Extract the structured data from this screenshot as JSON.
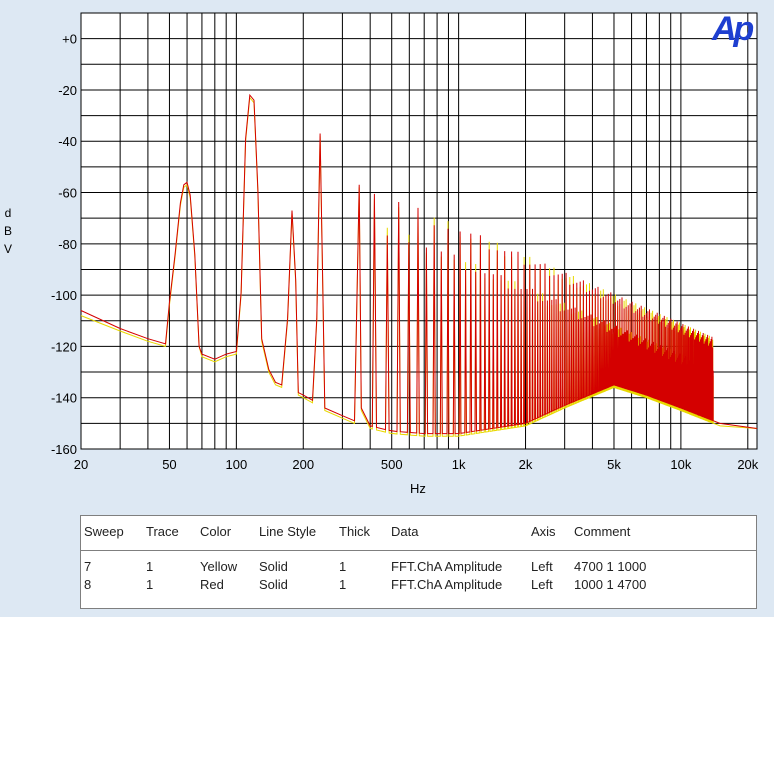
{
  "chart_data": {
    "type": "line",
    "title": "",
    "xlabel": "Hz",
    "ylabel": "dBV",
    "x_scale": "log",
    "xlim": [
      20,
      22000
    ],
    "ylim": [
      -160,
      10
    ],
    "grid": true,
    "xticks": [
      {
        "v": 20,
        "t": "20"
      },
      {
        "v": 50,
        "t": "50"
      },
      {
        "v": 100,
        "t": "100"
      },
      {
        "v": 200,
        "t": "200"
      },
      {
        "v": 500,
        "t": "500"
      },
      {
        "v": 1000,
        "t": "1k"
      },
      {
        "v": 2000,
        "t": "2k"
      },
      {
        "v": 5000,
        "t": "5k"
      },
      {
        "v": 10000,
        "t": "10k"
      },
      {
        "v": 20000,
        "t": "20k"
      }
    ],
    "yticks": [
      {
        "v": 0,
        "t": "+0"
      },
      {
        "v": -20,
        "t": "-20"
      },
      {
        "v": -40,
        "t": "-40"
      },
      {
        "v": -60,
        "t": "-60"
      },
      {
        "v": -80,
        "t": "-80"
      },
      {
        "v": -100,
        "t": "-100"
      },
      {
        "v": -120,
        "t": "-120"
      },
      {
        "v": -140,
        "t": "-140"
      },
      {
        "v": -160,
        "t": "-160"
      }
    ],
    "series": [
      {
        "name": "Yellow",
        "color": "#e8d800",
        "points": [
          [
            20,
            -108
          ],
          [
            30,
            -114
          ],
          [
            40,
            -118
          ],
          [
            48,
            -120
          ],
          [
            50,
            -104
          ],
          [
            53,
            -85
          ],
          [
            56,
            -65
          ],
          [
            58,
            -58
          ],
          [
            60,
            -57
          ],
          [
            62,
            -62
          ],
          [
            65,
            -85
          ],
          [
            68,
            -120
          ],
          [
            70,
            -124
          ],
          [
            80,
            -126
          ],
          [
            90,
            -124
          ],
          [
            100,
            -123
          ],
          [
            105,
            -100
          ],
          [
            110,
            -40
          ],
          [
            115,
            -23
          ],
          [
            120,
            -25
          ],
          [
            125,
            -60
          ],
          [
            130,
            -118
          ],
          [
            140,
            -130
          ],
          [
            150,
            -135
          ],
          [
            160,
            -136
          ],
          [
            170,
            -110
          ],
          [
            178,
            -68
          ],
          [
            185,
            -95
          ],
          [
            190,
            -139
          ],
          [
            200,
            -140
          ],
          [
            220,
            -142
          ],
          [
            230,
            -110
          ],
          [
            238,
            -38
          ],
          [
            245,
            -100
          ],
          [
            250,
            -145
          ],
          [
            300,
            -148
          ],
          [
            340,
            -150
          ],
          [
            357,
            -58
          ],
          [
            365,
            -145
          ],
          [
            400,
            -152
          ],
          [
            500,
            -154
          ],
          [
            700,
            -155
          ],
          [
            1000,
            -155
          ],
          [
            2000,
            -151
          ],
          [
            3000,
            -144
          ],
          [
            5000,
            -136
          ],
          [
            7000,
            -140
          ],
          [
            10000,
            -145
          ],
          [
            15000,
            -151
          ],
          [
            22000,
            -152
          ]
        ]
      },
      {
        "name": "Red",
        "color": "#d40000",
        "points": [
          [
            20,
            -106
          ],
          [
            30,
            -113
          ],
          [
            40,
            -117
          ],
          [
            48,
            -119
          ],
          [
            50,
            -103
          ],
          [
            53,
            -84
          ],
          [
            56,
            -64
          ],
          [
            58,
            -57
          ],
          [
            60,
            -56
          ],
          [
            62,
            -61
          ],
          [
            65,
            -84
          ],
          [
            68,
            -120
          ],
          [
            70,
            -123
          ],
          [
            80,
            -125
          ],
          [
            90,
            -123
          ],
          [
            100,
            -122
          ],
          [
            105,
            -99
          ],
          [
            110,
            -39
          ],
          [
            115,
            -22
          ],
          [
            120,
            -24
          ],
          [
            125,
            -59
          ],
          [
            130,
            -117
          ],
          [
            140,
            -129
          ],
          [
            150,
            -134
          ],
          [
            160,
            -135
          ],
          [
            170,
            -109
          ],
          [
            178,
            -67
          ],
          [
            185,
            -94
          ],
          [
            190,
            -138
          ],
          [
            200,
            -139
          ],
          [
            220,
            -141
          ],
          [
            230,
            -109
          ],
          [
            238,
            -37
          ],
          [
            245,
            -99
          ],
          [
            250,
            -144
          ],
          [
            300,
            -147
          ],
          [
            340,
            -149
          ],
          [
            357,
            -57
          ],
          [
            365,
            -144
          ],
          [
            400,
            -151
          ],
          [
            500,
            -153
          ],
          [
            700,
            -154
          ],
          [
            1000,
            -154
          ],
          [
            2000,
            -150
          ],
          [
            3000,
            -143
          ],
          [
            5000,
            -135
          ],
          [
            7000,
            -139
          ],
          [
            10000,
            -144
          ],
          [
            15000,
            -150
          ],
          [
            22000,
            -152
          ]
        ]
      }
    ]
  },
  "legend": {
    "headers": [
      "Sweep",
      "Trace",
      "Color",
      "Line Style",
      "Thick",
      "Data",
      "Axis",
      "Comment"
    ],
    "rows": [
      [
        "7",
        "1",
        "Yellow",
        "Solid",
        "1",
        "FFT.ChA Amplitude",
        "Left",
        "4700 1 1000"
      ],
      [
        "8",
        "1",
        "Red",
        "Solid",
        "1",
        "FFT.ChA Amplitude",
        "Left",
        "1000 1 4700"
      ]
    ]
  },
  "logo": "Ap",
  "colors": {
    "panel": "#dde8f3",
    "grid": "#000000",
    "logo": "#1e3fd0"
  }
}
